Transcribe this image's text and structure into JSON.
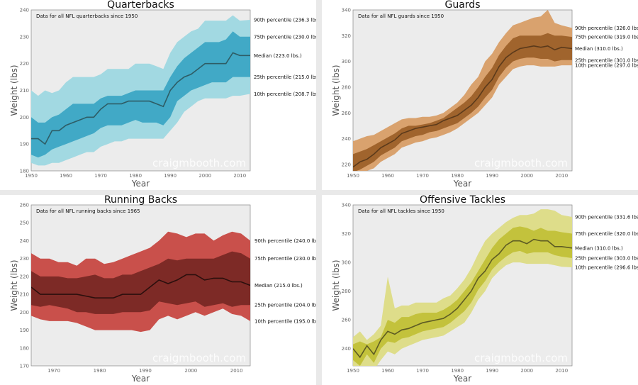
{
  "chart_data": [
    {
      "type": "area",
      "title": "Quarterbacks",
      "note": "Data for all NFL quarterbacks since 1950",
      "xlabel": "Year",
      "ylabel": "Weight (lbs)",
      "xlim": [
        1950,
        2013
      ],
      "ylim": [
        180,
        240
      ],
      "xticks": [
        1950,
        1960,
        1970,
        1980,
        1990,
        2000,
        2010
      ],
      "yticks": [
        180,
        190,
        200,
        210,
        220,
        230,
        240
      ],
      "watermark": "craigmbooth.com",
      "colors": {
        "outer": "#a2d9e2",
        "inner": "#41a9c6",
        "median": "#2e5d66"
      },
      "labels": [
        {
          "key": "p90",
          "text": "90th percentile (236.3 lbs.)"
        },
        {
          "key": "p75",
          "text": "75th percentile (230.0 lbs.)"
        },
        {
          "key": "median",
          "text": "Median (223.0 lbs.)"
        },
        {
          "key": "p25",
          "text": "25th percentile (215.0 lbs.)"
        },
        {
          "key": "p10",
          "text": "10th percentile (208.7 lbs.)"
        }
      ],
      "x": [
        1950,
        1952,
        1954,
        1956,
        1958,
        1960,
        1962,
        1964,
        1966,
        1968,
        1970,
        1972,
        1974,
        1976,
        1978,
        1980,
        1982,
        1984,
        1986,
        1988,
        1990,
        1992,
        1994,
        1996,
        1998,
        2000,
        2002,
        2004,
        2006,
        2008,
        2010,
        2013
      ],
      "p90": [
        210,
        208,
        210,
        209,
        210,
        213,
        215,
        215,
        215,
        215,
        216,
        218,
        218,
        218,
        218,
        220,
        220,
        220,
        219,
        218,
        224,
        228,
        230,
        232,
        233,
        236,
        236,
        236,
        236,
        238,
        236,
        236.3
      ],
      "p75": [
        200,
        198,
        198,
        200,
        201,
        203,
        205,
        205,
        205,
        205,
        207,
        208,
        208,
        208,
        209,
        210,
        210,
        210,
        210,
        210,
        215,
        219,
        222,
        224,
        226,
        228,
        228,
        228,
        229,
        232,
        230,
        230
      ],
      "median": [
        192,
        192,
        190,
        195,
        195,
        197,
        198,
        199,
        200,
        200,
        203,
        205,
        205,
        205,
        206,
        206,
        206,
        206,
        205,
        204,
        210,
        213,
        215,
        216,
        218,
        220,
        220,
        220,
        220,
        224,
        223,
        223
      ],
      "p25": [
        186,
        185,
        186,
        188,
        189,
        190,
        191,
        192,
        193,
        194,
        196,
        197,
        197,
        197,
        198,
        199,
        198,
        198,
        198,
        197,
        200,
        206,
        208,
        210,
        211,
        212,
        213,
        213,
        213,
        215,
        215,
        215
      ],
      "p10": [
        183,
        182,
        182,
        183,
        183,
        184,
        185,
        186,
        187,
        187,
        189,
        190,
        191,
        191,
        192,
        192,
        192,
        192,
        192,
        192,
        195,
        198,
        202,
        204,
        206,
        207,
        207,
        207,
        207,
        208,
        208,
        208.7
      ]
    },
    {
      "type": "area",
      "title": "Guards",
      "note": "Data for all NFL guards since 1950",
      "xlabel": "Year",
      "ylabel": "Weight (lbs)",
      "xlim": [
        1950,
        2013
      ],
      "ylim": [
        215,
        340
      ],
      "xticks": [
        1950,
        1960,
        1970,
        1980,
        1990,
        2000,
        2010
      ],
      "yticks": [
        220,
        240,
        260,
        280,
        300,
        320,
        340
      ],
      "watermark": "craigmbooth.com",
      "colors": {
        "outer": "#d9a26e",
        "inner": "#a0642d",
        "median": "#5b3a1b"
      },
      "labels": [
        {
          "key": "p90",
          "text": "90th percentile (326.0 lbs.)"
        },
        {
          "key": "p75",
          "text": "75th percentile (319.0 lbs.)"
        },
        {
          "key": "median",
          "text": "Median (310.0 lbs.)"
        },
        {
          "key": "p25",
          "text": "25th percentile (301.0 lbs.)"
        },
        {
          "key": "p10",
          "text": "10th percentile (297.0 lbs.)"
        }
      ],
      "x": [
        1950,
        1952,
        1954,
        1956,
        1958,
        1960,
        1962,
        1964,
        1966,
        1968,
        1970,
        1972,
        1974,
        1976,
        1978,
        1980,
        1982,
        1984,
        1986,
        1988,
        1990,
        1992,
        1994,
        1996,
        1998,
        2000,
        2002,
        2004,
        2006,
        2008,
        2010,
        2013
      ],
      "p90": [
        238,
        240,
        242,
        243,
        246,
        249,
        252,
        255,
        256,
        256,
        257,
        257,
        258,
        260,
        264,
        268,
        274,
        282,
        288,
        300,
        306,
        315,
        322,
        328,
        330,
        332,
        334,
        335,
        340,
        330,
        328,
        326
      ],
      "p75": [
        228,
        230,
        232,
        235,
        238,
        241,
        244,
        248,
        250,
        250,
        251,
        252,
        254,
        256,
        260,
        264,
        268,
        273,
        280,
        288,
        295,
        305,
        312,
        318,
        320,
        320,
        320,
        320,
        322,
        320,
        320,
        319
      ],
      "median": [
        218,
        222,
        224,
        228,
        233,
        236,
        239,
        244,
        246,
        248,
        249,
        250,
        251,
        254,
        256,
        258,
        262,
        266,
        272,
        280,
        286,
        296,
        303,
        307,
        310,
        311,
        312,
        311,
        312,
        309,
        311,
        310
      ],
      "p25": [
        214,
        216,
        219,
        222,
        227,
        230,
        233,
        238,
        240,
        242,
        243,
        245,
        246,
        248,
        250,
        252,
        256,
        260,
        265,
        272,
        278,
        288,
        295,
        300,
        302,
        303,
        303,
        302,
        302,
        300,
        301,
        301
      ],
      "p10": [
        210,
        212,
        215,
        217,
        222,
        225,
        228,
        233,
        235,
        237,
        238,
        240,
        241,
        243,
        245,
        248,
        252,
        256,
        260,
        266,
        272,
        282,
        288,
        294,
        296,
        297,
        297,
        296,
        296,
        296,
        297,
        297
      ]
    },
    {
      "type": "area",
      "title": "Running Backs",
      "note": "Data for all NFL running backs since 1965",
      "xlabel": "Year",
      "ylabel": "Weight (lbs)",
      "xlim": [
        1965,
        2013
      ],
      "ylim": [
        170,
        260
      ],
      "xticks": [
        1970,
        1980,
        1990,
        2000,
        2010
      ],
      "yticks": [
        170,
        180,
        190,
        200,
        210,
        220,
        230,
        240,
        250,
        260
      ],
      "watermark": "craigmbooth.com",
      "colors": {
        "outer": "#c9504b",
        "inner": "#7d2a26",
        "median": "#2b0f0d"
      },
      "labels": [
        {
          "key": "p90",
          "text": "90th percentile (240.0 lbs.)"
        },
        {
          "key": "p75",
          "text": "75th percentile (230.0 lbs.)"
        },
        {
          "key": "median",
          "text": "Median (215.0 lbs.)"
        },
        {
          "key": "p25",
          "text": "25th percentile (204.0 lbs.)"
        },
        {
          "key": "p10",
          "text": "10th percentile (195.0 lbs.)"
        }
      ],
      "x": [
        1965,
        1967,
        1969,
        1971,
        1973,
        1975,
        1977,
        1979,
        1981,
        1983,
        1985,
        1987,
        1989,
        1991,
        1993,
        1995,
        1997,
        1999,
        2001,
        2003,
        2005,
        2007,
        2009,
        2011,
        2013
      ],
      "p90": [
        233,
        230,
        230,
        228,
        228,
        226,
        230,
        230,
        227,
        228,
        230,
        232,
        234,
        236,
        240,
        245,
        244,
        242,
        244,
        244,
        240,
        243,
        245,
        244,
        240
      ],
      "p75": [
        223,
        220,
        220,
        220,
        219,
        219,
        220,
        221,
        219,
        219,
        221,
        221,
        223,
        225,
        227,
        230,
        229,
        230,
        230,
        230,
        230,
        232,
        234,
        233,
        230
      ],
      "median": [
        214,
        210,
        210,
        210,
        210,
        210,
        209,
        208,
        208,
        208,
        210,
        210,
        210,
        214,
        218,
        216,
        218,
        221,
        221,
        218,
        219,
        219,
        217,
        217,
        215
      ],
      "p25": [
        204,
        203,
        204,
        203,
        202,
        200,
        200,
        199,
        199,
        199,
        200,
        200,
        200,
        201,
        206,
        205,
        204,
        205,
        206,
        203,
        204,
        205,
        203,
        204,
        204
      ],
      "p10": [
        198,
        196,
        195,
        195,
        195,
        194,
        192,
        190,
        190,
        190,
        190,
        190,
        189,
        190,
        196,
        198,
        196,
        198,
        200,
        198,
        200,
        202,
        199,
        198,
        195
      ]
    },
    {
      "type": "area",
      "title": "Offensive Tackles",
      "note": "Data for all NFL tackles since 1950",
      "xlabel": "Year",
      "ylabel": "Weight (lbs)",
      "xlim": [
        1950,
        2013
      ],
      "ylim": [
        228,
        340
      ],
      "xticks": [
        1950,
        1960,
        1970,
        1980,
        1990,
        2000,
        2010
      ],
      "yticks": [
        240,
        260,
        280,
        300,
        320,
        340
      ],
      "watermark": "craigmbooth.com",
      "colors": {
        "outer": "#dedd8a",
        "inner": "#c3c23c",
        "median": "#5e5c24"
      },
      "labels": [
        {
          "key": "p90",
          "text": "90th percentile (331.6 lbs.)"
        },
        {
          "key": "p75",
          "text": "75th percentile (320.0 lbs.)"
        },
        {
          "key": "median",
          "text": "Median (310.0 lbs.)"
        },
        {
          "key": "p25",
          "text": "25th percentile (303.0 lbs.)"
        },
        {
          "key": "p10",
          "text": "10th percentile (296.6 lbs.)"
        }
      ],
      "x": [
        1950,
        1952,
        1954,
        1956,
        1958,
        1960,
        1962,
        1964,
        1966,
        1968,
        1970,
        1972,
        1974,
        1976,
        1978,
        1980,
        1982,
        1984,
        1986,
        1988,
        1990,
        1992,
        1994,
        1996,
        1998,
        2000,
        2002,
        2004,
        2006,
        2008,
        2010,
        2013
      ],
      "p90": [
        248,
        252,
        246,
        250,
        256,
        290,
        268,
        270,
        270,
        272,
        272,
        272,
        272,
        275,
        277,
        282,
        288,
        296,
        306,
        315,
        320,
        324,
        328,
        331,
        333,
        333,
        334,
        337,
        337,
        336,
        333,
        331.6
      ],
      "p75": [
        243,
        245,
        243,
        245,
        248,
        260,
        258,
        262,
        262,
        264,
        265,
        265,
        265,
        267,
        270,
        274,
        280,
        286,
        294,
        302,
        310,
        316,
        320,
        324,
        325,
        324,
        322,
        324,
        322,
        322,
        321,
        320
      ],
      "median": [
        240,
        234,
        242,
        236,
        246,
        252,
        250,
        253,
        254,
        256,
        258,
        259,
        260,
        261,
        264,
        268,
        274,
        280,
        289,
        294,
        302,
        306,
        312,
        315,
        315,
        313,
        316,
        315,
        315,
        311,
        311,
        310
      ],
      "p25": [
        232,
        228,
        236,
        230,
        240,
        245,
        244,
        247,
        248,
        250,
        252,
        253,
        254,
        255,
        258,
        262,
        266,
        272,
        281,
        287,
        295,
        300,
        304,
        307,
        308,
        306,
        307,
        307,
        307,
        305,
        304,
        303
      ],
      "p10": [
        228,
        225,
        228,
        225,
        232,
        238,
        236,
        240,
        242,
        244,
        246,
        247,
        248,
        249,
        252,
        255,
        258,
        265,
        274,
        280,
        289,
        294,
        298,
        300,
        300,
        299,
        299,
        299,
        299,
        298,
        297,
        296.6
      ]
    }
  ]
}
